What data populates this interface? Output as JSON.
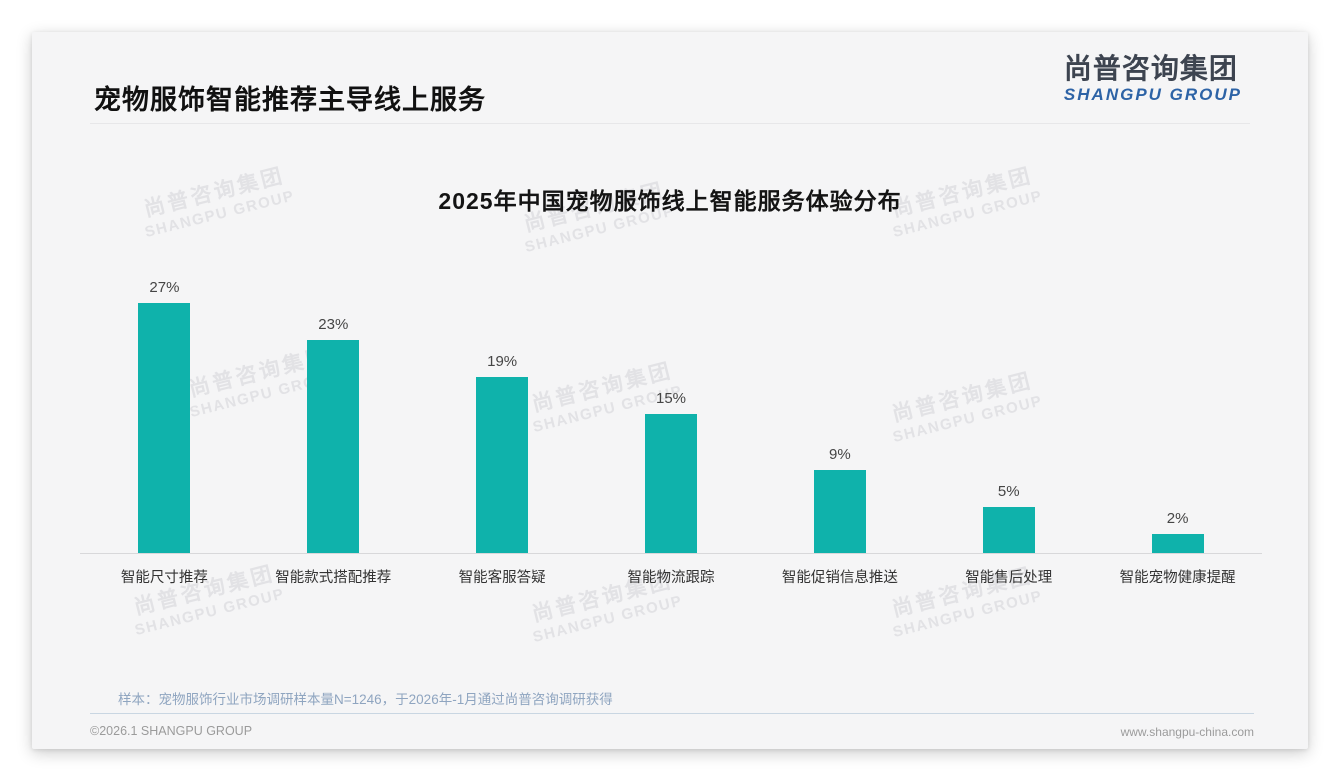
{
  "page": {
    "header": {
      "title": "宠物服饰智能推荐主导线上服务"
    },
    "logo": {
      "cn": "尚普咨询集团",
      "en": "SHANGPU GROUP"
    },
    "watermark": {
      "cn": "尚普咨询集团",
      "en": "SHANGPU GROUP"
    },
    "footnote": "样本：宠物服饰行业市场调研样本量N=1246，于2026年-1月通过尚普咨询调研获得",
    "footer": {
      "copyright": "©2026.1 SHANGPU GROUP",
      "website": "www.shangpu-china.com"
    }
  },
  "chart_data": {
    "type": "bar",
    "title": "2025年中国宠物服饰线上智能服务体验分布",
    "categories": [
      "智能尺寸推荐",
      "智能款式搭配推荐",
      "智能客服答疑",
      "智能物流跟踪",
      "智能促销信息推送",
      "智能售后处理",
      "智能宠物健康提醒"
    ],
    "values": [
      27,
      23,
      19,
      15,
      9,
      5,
      2
    ],
    "value_labels": [
      "27%",
      "23%",
      "19%",
      "15%",
      "9%",
      "5%",
      "2%"
    ],
    "xlabel": "",
    "ylabel": "",
    "ylim": [
      0,
      30
    ],
    "grid": false,
    "legend": null,
    "bar_color": "#0fb2ab",
    "baseline_color": "#d8d8da"
  }
}
